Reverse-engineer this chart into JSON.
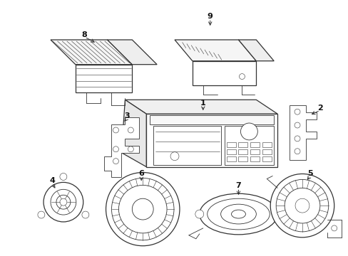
{
  "background_color": "#ffffff",
  "line_color": "#333333",
  "label_color": "#111111",
  "figsize": [
    4.89,
    3.6
  ],
  "dpi": 100,
  "lw_main": 0.9,
  "lw_detail": 0.6,
  "lw_thin": 0.4
}
